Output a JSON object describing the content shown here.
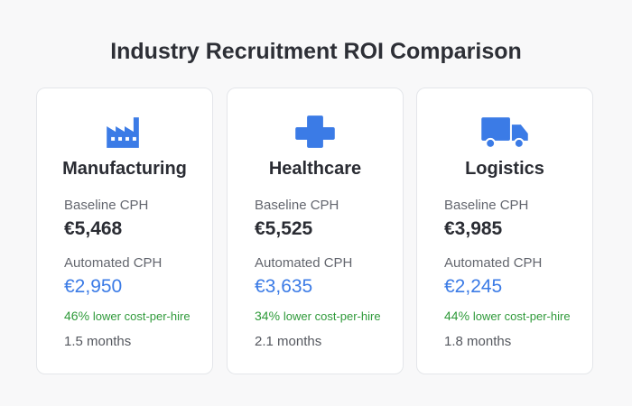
{
  "header": {
    "title": "Industry Recruitment ROI Comparison"
  },
  "cards": [
    {
      "industry": "Manufacturing",
      "baseline_label": "Baseline CPH",
      "baseline_value": "€5,468",
      "automated_label": "Automated CPH",
      "automated_value": "€2,950",
      "savings_percent": "46%",
      "savings_text": "lower cost-per-hire",
      "payback": "1.5 months"
    },
    {
      "industry": "Healthcare",
      "baseline_label": "Baseline CPH",
      "baseline_value": "€5,525",
      "automated_label": "Automated CPH",
      "automated_value": "€3,635",
      "savings_percent": "34%",
      "savings_text": "lower cost-per-hire",
      "payback": "2.1 months"
    },
    {
      "industry": "Logistics",
      "baseline_label": "Baseline CPH",
      "baseline_value": "€3,985",
      "automated_label": "Automated CPH",
      "automated_value": "€2,245",
      "savings_percent": "44%",
      "savings_text": "lower cost-per-hire",
      "payback": "1.8 months"
    }
  ]
}
